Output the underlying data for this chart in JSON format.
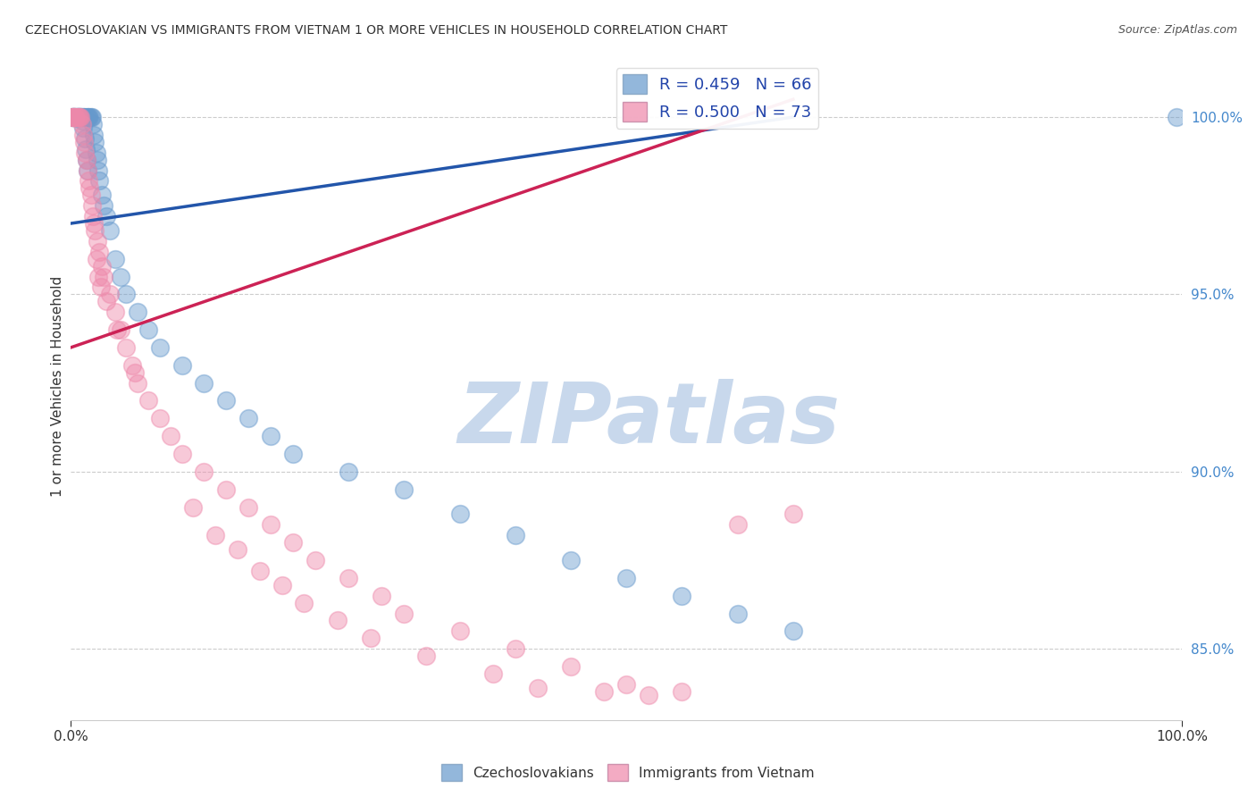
{
  "title": "CZECHOSLOVAKIAN VS IMMIGRANTS FROM VIETNAM 1 OR MORE VEHICLES IN HOUSEHOLD CORRELATION CHART",
  "source": "Source: ZipAtlas.com",
  "ylabel": "1 or more Vehicles in Household",
  "xlim": [
    0.0,
    100.0
  ],
  "ylim": [
    83.0,
    101.8
  ],
  "yticks": [
    85.0,
    90.0,
    95.0,
    100.0
  ],
  "xticks": [
    0.0,
    100.0
  ],
  "xtick_labels": [
    "0.0%",
    "100.0%"
  ],
  "legend_blue_label": "R = 0.459   N = 66",
  "legend_pink_label": "R = 0.500   N = 73",
  "blue_color": "#6699CC",
  "pink_color": "#EE88AA",
  "blue_line_color": "#2255AA",
  "pink_line_color": "#CC2255",
  "watermark": "ZIPatlas",
  "watermark_color": "#C8D8EC",
  "blue_scatter_x": [
    0.1,
    0.2,
    0.3,
    0.4,
    0.5,
    0.6,
    0.7,
    0.8,
    0.9,
    1.0,
    1.1,
    1.2,
    1.3,
    1.4,
    1.5,
    1.6,
    1.7,
    1.8,
    1.9,
    2.0,
    2.1,
    2.2,
    2.3,
    2.4,
    2.5,
    2.6,
    2.8,
    3.0,
    3.2,
    3.5,
    4.0,
    4.5,
    5.0,
    6.0,
    7.0,
    8.0,
    10.0,
    12.0,
    14.0,
    16.0,
    18.0,
    20.0,
    25.0,
    30.0,
    35.0,
    40.0,
    45.0,
    50.0,
    55.0,
    60.0,
    65.0,
    0.15,
    0.25,
    0.35,
    0.55,
    0.65,
    0.75,
    0.85,
    0.95,
    1.05,
    1.15,
    1.25,
    1.35,
    1.45,
    1.55,
    99.5
  ],
  "blue_scatter_y": [
    100.0,
    100.0,
    100.0,
    100.0,
    100.0,
    100.0,
    100.0,
    100.0,
    100.0,
    100.0,
    100.0,
    100.0,
    100.0,
    100.0,
    100.0,
    100.0,
    100.0,
    100.0,
    100.0,
    99.8,
    99.5,
    99.3,
    99.0,
    98.8,
    98.5,
    98.2,
    97.8,
    97.5,
    97.2,
    96.8,
    96.0,
    95.5,
    95.0,
    94.5,
    94.0,
    93.5,
    93.0,
    92.5,
    92.0,
    91.5,
    91.0,
    90.5,
    90.0,
    89.5,
    88.8,
    88.2,
    87.5,
    87.0,
    86.5,
    86.0,
    85.5,
    100.0,
    100.0,
    100.0,
    100.0,
    100.0,
    100.0,
    100.0,
    100.0,
    99.9,
    99.7,
    99.4,
    99.1,
    98.8,
    98.5,
    100.0
  ],
  "pink_scatter_x": [
    0.1,
    0.2,
    0.3,
    0.4,
    0.5,
    0.6,
    0.7,
    0.8,
    0.9,
    1.0,
    1.1,
    1.2,
    1.3,
    1.4,
    1.5,
    1.6,
    1.7,
    1.8,
    1.9,
    2.0,
    2.1,
    2.2,
    2.4,
    2.6,
    2.8,
    3.0,
    3.5,
    4.0,
    4.5,
    5.0,
    5.5,
    6.0,
    7.0,
    8.0,
    9.0,
    10.0,
    12.0,
    14.0,
    16.0,
    18.0,
    20.0,
    22.0,
    25.0,
    28.0,
    30.0,
    35.0,
    40.0,
    45.0,
    50.0,
    55.0,
    2.3,
    2.5,
    2.7,
    3.2,
    4.2,
    5.8,
    11.0,
    13.0,
    15.0,
    17.0,
    19.0,
    21.0,
    24.0,
    27.0,
    32.0,
    38.0,
    42.0,
    48.0,
    52.0,
    60.0,
    0.15,
    0.25,
    65.0
  ],
  "pink_scatter_y": [
    100.0,
    100.0,
    100.0,
    100.0,
    100.0,
    100.0,
    100.0,
    100.0,
    100.0,
    99.8,
    99.5,
    99.3,
    99.0,
    98.8,
    98.5,
    98.2,
    98.0,
    97.8,
    97.5,
    97.2,
    97.0,
    96.8,
    96.5,
    96.2,
    95.8,
    95.5,
    95.0,
    94.5,
    94.0,
    93.5,
    93.0,
    92.5,
    92.0,
    91.5,
    91.0,
    90.5,
    90.0,
    89.5,
    89.0,
    88.5,
    88.0,
    87.5,
    87.0,
    86.5,
    86.0,
    85.5,
    85.0,
    84.5,
    84.0,
    83.8,
    96.0,
    95.5,
    95.2,
    94.8,
    94.0,
    92.8,
    89.0,
    88.2,
    87.8,
    87.2,
    86.8,
    86.3,
    85.8,
    85.3,
    84.8,
    84.3,
    83.9,
    83.8,
    83.7,
    88.5,
    100.0,
    100.0,
    88.8
  ],
  "blue_line_x0": 0.0,
  "blue_line_y0": 97.0,
  "blue_line_x1": 65.0,
  "blue_line_y1": 100.0,
  "pink_line_x0": 0.0,
  "pink_line_y0": 93.5,
  "pink_line_x1": 65.0,
  "pink_line_y1": 100.5
}
